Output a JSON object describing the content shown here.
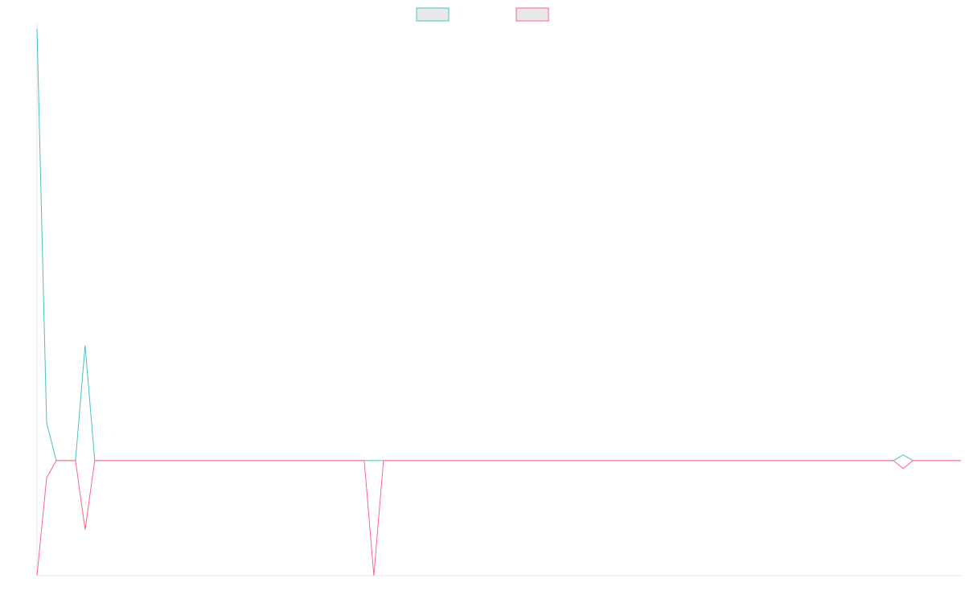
{
  "chart_data": {
    "type": "line",
    "title": "",
    "xlabel": "",
    "ylabel": "",
    "grid": false,
    "legend_position": "top-center",
    "x": [
      0,
      1,
      2,
      3,
      4,
      5,
      6,
      7,
      8,
      9,
      10,
      11,
      12,
      13,
      14,
      15,
      16,
      17,
      18,
      19,
      20,
      21,
      22,
      23,
      24,
      25,
      26,
      27,
      28,
      29,
      30,
      31,
      32,
      33,
      34,
      35,
      36,
      37,
      38,
      39,
      40,
      41,
      42,
      43,
      44,
      45,
      46,
      47,
      48,
      49,
      50,
      51,
      52,
      53,
      54,
      55,
      56,
      57,
      58,
      59,
      60,
      61,
      62,
      63,
      64,
      65,
      66,
      67,
      68,
      69,
      70,
      71,
      72,
      73,
      74,
      75,
      76,
      77,
      78,
      79,
      80,
      81,
      82,
      83,
      84,
      85,
      86,
      87,
      88,
      89,
      90,
      91,
      92,
      93,
      94,
      95,
      96
    ],
    "xlim": [
      0,
      96
    ],
    "ylim": [
      -1,
      3.75
    ],
    "series": [
      {
        "color": "#4bc0c0",
        "values": [
          3.75,
          0.33,
          0,
          0,
          0,
          1,
          0,
          0,
          0,
          0,
          0,
          0,
          0,
          0,
          0,
          0,
          0,
          0,
          0,
          0,
          0,
          0,
          0,
          0,
          0,
          0,
          0,
          0,
          0,
          0,
          0,
          0,
          0,
          0,
          0,
          0,
          0,
          0,
          0,
          0,
          0,
          0,
          0,
          0,
          0,
          0,
          0,
          0,
          0,
          0,
          0,
          0,
          0,
          0,
          0,
          0,
          0,
          0,
          0,
          0,
          0,
          0,
          0,
          0,
          0,
          0,
          0,
          0,
          0,
          0,
          0,
          0,
          0,
          0,
          0,
          0,
          0,
          0,
          0,
          0,
          0,
          0,
          0,
          0,
          0,
          0,
          0,
          0,
          0,
          0,
          0.05,
          0,
          0,
          0,
          0,
          0,
          0
        ]
      },
      {
        "color": "#ff6384",
        "values": [
          -1,
          -0.15,
          0,
          0,
          0,
          -0.6,
          0,
          0,
          0,
          0,
          0,
          0,
          0,
          0,
          0,
          0,
          0,
          0,
          0,
          0,
          0,
          0,
          0,
          0,
          0,
          0,
          0,
          0,
          0,
          0,
          0,
          0,
          0,
          0,
          0,
          -1,
          0,
          0,
          0,
          0,
          0,
          0,
          0,
          0,
          0,
          0,
          0,
          0,
          0,
          0,
          0,
          0,
          0,
          0,
          0,
          0,
          0,
          0,
          0,
          0,
          0,
          0,
          0,
          0,
          0,
          0,
          0,
          0,
          0,
          0,
          0,
          0,
          0,
          0,
          0,
          0,
          0,
          0,
          0,
          0,
          0,
          0,
          0,
          0,
          0,
          0,
          0,
          0,
          0,
          0,
          -0.07,
          0,
          0,
          0,
          0,
          0,
          0
        ]
      }
    ]
  },
  "legend": {
    "items": [
      {
        "color": "#4bc0c0",
        "fill": "#e8e8e8"
      },
      {
        "color": "#ff6384",
        "fill": "#e8e8e8"
      }
    ]
  }
}
